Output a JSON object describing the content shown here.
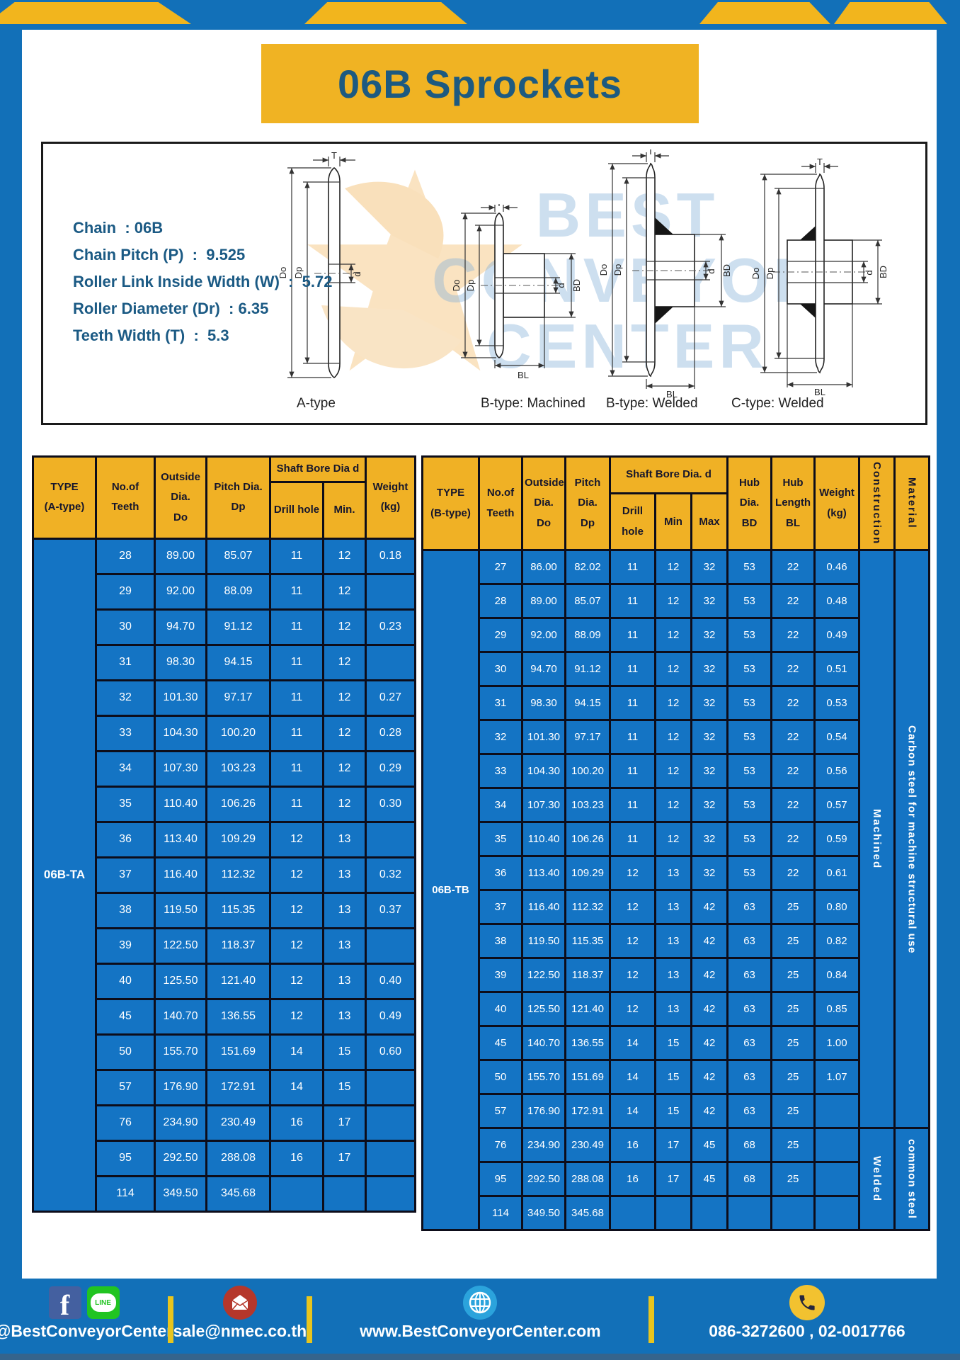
{
  "title": "06B Sprockets",
  "colors": {
    "frame_blue": "#1270b8",
    "cell_blue": "#1474c4",
    "header_yellow": "#f0b125",
    "stripe_yellow": "#f2b51d",
    "title_text": "#1d5a80",
    "divider_yellow": "#e8c51e"
  },
  "specs": [
    "Chain  : 06B",
    "Chain Pitch (P)  :  9.525",
    "Roller Link Inside Width (W)  :  5.72",
    "Roller Diameter (Dr)  : 6.35",
    "Teeth Width (T)  :  5.3"
  ],
  "watermark": {
    "line1": "BEST",
    "line2": "CONVEYOR",
    "line3": "CENTER"
  },
  "diagrams": {
    "captions": [
      "A-type",
      "B-type: Machined",
      "B-type: Welded",
      "C-type: Welded"
    ],
    "dim_labels": {
      "t": "T",
      "do": "Do",
      "dp": "Dp",
      "d": "d",
      "bd": "BD",
      "bl": "BL"
    }
  },
  "table_a": {
    "headers": {
      "type": "TYPE\n(A-type)",
      "teeth": "No.of\nTeeth",
      "outside": "Outside\nDia.\nDo",
      "pitch": "Pitch Dia.\nDp",
      "shaft": "Shaft Bore Dia d",
      "drill": "Drill hole",
      "min": "Min.",
      "weight": "Weight\n(kg)"
    },
    "type_label": "06B-TA",
    "rows": [
      [
        "28",
        "89.00",
        "85.07",
        "11",
        "12",
        "0.18"
      ],
      [
        "29",
        "92.00",
        "88.09",
        "11",
        "12",
        ""
      ],
      [
        "30",
        "94.70",
        "91.12",
        "11",
        "12",
        "0.23"
      ],
      [
        "31",
        "98.30",
        "94.15",
        "11",
        "12",
        ""
      ],
      [
        "32",
        "101.30",
        "97.17",
        "11",
        "12",
        "0.27"
      ],
      [
        "33",
        "104.30",
        "100.20",
        "11",
        "12",
        "0.28"
      ],
      [
        "34",
        "107.30",
        "103.23",
        "11",
        "12",
        "0.29"
      ],
      [
        "35",
        "110.40",
        "106.26",
        "11",
        "12",
        "0.30"
      ],
      [
        "36",
        "113.40",
        "109.29",
        "12",
        "13",
        ""
      ],
      [
        "37",
        "116.40",
        "112.32",
        "12",
        "13",
        "0.32"
      ],
      [
        "38",
        "119.50",
        "115.35",
        "12",
        "13",
        "0.37"
      ],
      [
        "39",
        "122.50",
        "118.37",
        "12",
        "13",
        ""
      ],
      [
        "40",
        "125.50",
        "121.40",
        "12",
        "13",
        "0.40"
      ],
      [
        "45",
        "140.70",
        "136.55",
        "12",
        "13",
        "0.49"
      ],
      [
        "50",
        "155.70",
        "151.69",
        "14",
        "15",
        "0.60"
      ],
      [
        "57",
        "176.90",
        "172.91",
        "14",
        "15",
        ""
      ],
      [
        "76",
        "234.90",
        "230.49",
        "16",
        "17",
        ""
      ],
      [
        "95",
        "292.50",
        "288.08",
        "16",
        "17",
        ""
      ],
      [
        "114",
        "349.50",
        "345.68",
        "",
        "",
        ""
      ]
    ]
  },
  "table_b": {
    "headers": {
      "type": "TYPE\n(B-type)",
      "teeth": "No.of\nTeeth",
      "outside": "Outside\nDia.\nDo",
      "pitch": "Pitch\nDia.\nDp",
      "shaft": "Shaft Bore Dia. d",
      "drill": "Drill hole",
      "min": "Min",
      "max": "Max",
      "hub_dia": "Hub\nDia.\nBD",
      "hub_len": "Hub\nLength\nBL",
      "weight": "Weight\n(kg)",
      "construction": "Construction",
      "material": "Material"
    },
    "type_label": "06B-TB",
    "rows": [
      [
        "27",
        "86.00",
        "82.02",
        "11",
        "12",
        "32",
        "53",
        "22",
        "0.46"
      ],
      [
        "28",
        "89.00",
        "85.07",
        "11",
        "12",
        "32",
        "53",
        "22",
        "0.48"
      ],
      [
        "29",
        "92.00",
        "88.09",
        "11",
        "12",
        "32",
        "53",
        "22",
        "0.49"
      ],
      [
        "30",
        "94.70",
        "91.12",
        "11",
        "12",
        "32",
        "53",
        "22",
        "0.51"
      ],
      [
        "31",
        "98.30",
        "94.15",
        "11",
        "12",
        "32",
        "53",
        "22",
        "0.53"
      ],
      [
        "32",
        "101.30",
        "97.17",
        "11",
        "12",
        "32",
        "53",
        "22",
        "0.54"
      ],
      [
        "33",
        "104.30",
        "100.20",
        "11",
        "12",
        "32",
        "53",
        "22",
        "0.56"
      ],
      [
        "34",
        "107.30",
        "103.23",
        "11",
        "12",
        "32",
        "53",
        "22",
        "0.57"
      ],
      [
        "35",
        "110.40",
        "106.26",
        "11",
        "12",
        "32",
        "53",
        "22",
        "0.59"
      ],
      [
        "36",
        "113.40",
        "109.29",
        "12",
        "13",
        "32",
        "53",
        "22",
        "0.61"
      ],
      [
        "37",
        "116.40",
        "112.32",
        "12",
        "13",
        "42",
        "63",
        "25",
        "0.80"
      ],
      [
        "38",
        "119.50",
        "115.35",
        "12",
        "13",
        "42",
        "63",
        "25",
        "0.82"
      ],
      [
        "39",
        "122.50",
        "118.37",
        "12",
        "13",
        "42",
        "63",
        "25",
        "0.84"
      ],
      [
        "40",
        "125.50",
        "121.40",
        "12",
        "13",
        "42",
        "63",
        "25",
        "0.85"
      ],
      [
        "45",
        "140.70",
        "136.55",
        "14",
        "15",
        "42",
        "63",
        "25",
        "1.00"
      ],
      [
        "50",
        "155.70",
        "151.69",
        "14",
        "15",
        "42",
        "63",
        "25",
        "1.07"
      ],
      [
        "57",
        "176.90",
        "172.91",
        "14",
        "15",
        "42",
        "63",
        "25",
        ""
      ],
      [
        "76",
        "234.90",
        "230.49",
        "16",
        "17",
        "45",
        "68",
        "25",
        ""
      ],
      [
        "95",
        "292.50",
        "288.08",
        "16",
        "17",
        "45",
        "68",
        "25",
        ""
      ],
      [
        "114",
        "349.50",
        "345.68",
        "",
        "",
        "",
        "",
        "",
        ""
      ]
    ],
    "construction_groups": [
      {
        "label": "Machined",
        "span": 17
      },
      {
        "label": "Welded",
        "span": 3
      }
    ],
    "material_groups": [
      {
        "label": "Carbon steel for machine structural use",
        "span": 17
      },
      {
        "label": "common steel",
        "span": 3
      }
    ]
  },
  "footer": {
    "line_icon_label": "LINE",
    "items": [
      {
        "text": "@BestConveyorCenter"
      },
      {
        "text": "sale@nmec.co.th"
      },
      {
        "text": "www.BestConveyorCenter.com"
      },
      {
        "text": "086-3272600 , 02-0017766"
      }
    ]
  }
}
